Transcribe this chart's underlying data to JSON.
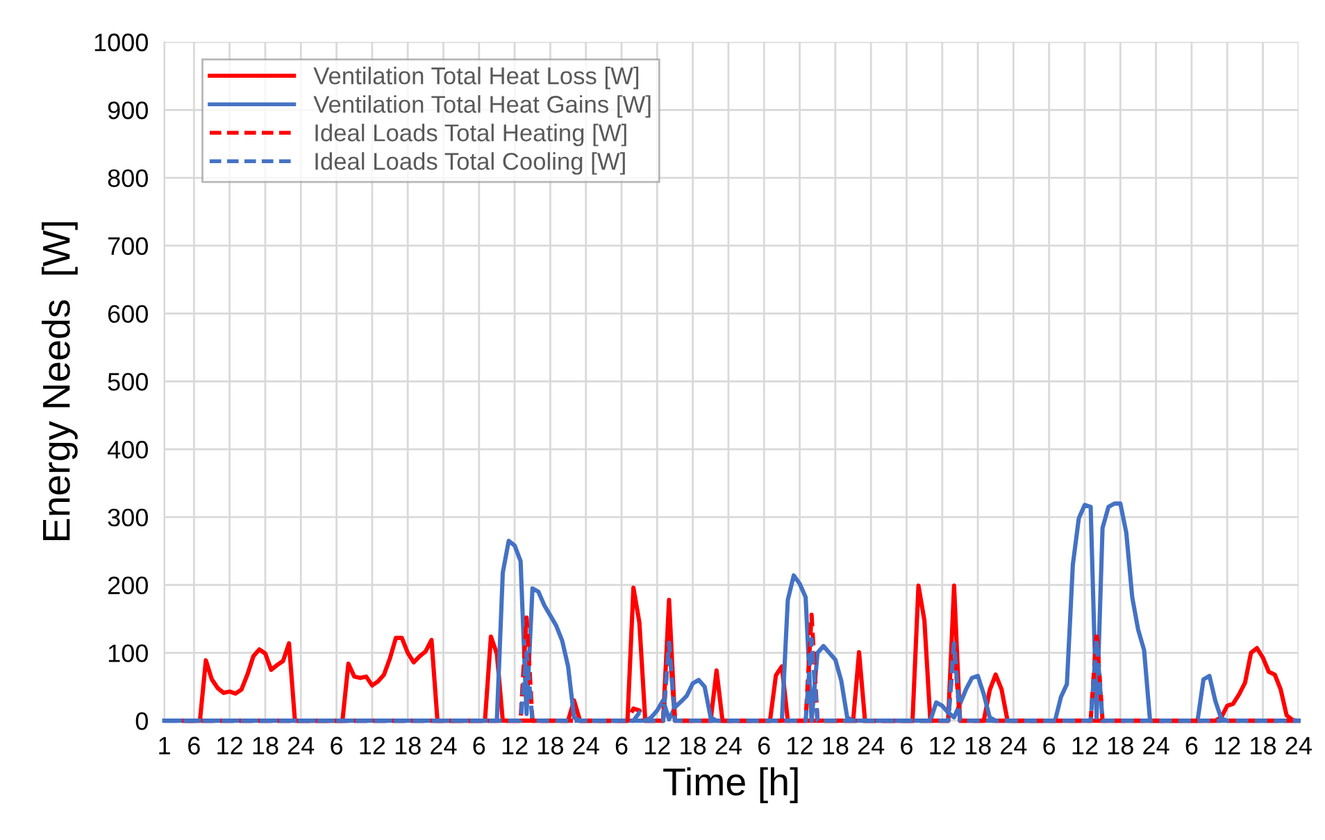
{
  "chart_data": {
    "type": "line",
    "xlabel": "Time [h]",
    "ylabel": "Energy Needs  [W]",
    "categories": [
      "1",
      null,
      null,
      null,
      null,
      "6",
      null,
      null,
      null,
      null,
      null,
      "12",
      null,
      null,
      null,
      null,
      null,
      "18",
      null,
      null,
      null,
      null,
      null,
      "24",
      null,
      null,
      null,
      null,
      null,
      "6",
      null,
      null,
      null,
      null,
      null,
      "12",
      null,
      null,
      null,
      null,
      null,
      "18",
      null,
      null,
      null,
      null,
      null,
      "24",
      null,
      null,
      null,
      null,
      null,
      "6",
      null,
      null,
      null,
      null,
      null,
      "12",
      null,
      null,
      null,
      null,
      null,
      "18",
      null,
      null,
      null,
      null,
      null,
      "24",
      null,
      null,
      null,
      null,
      null,
      "6",
      null,
      null,
      null,
      null,
      null,
      "12",
      null,
      null,
      null,
      null,
      null,
      "18",
      null,
      null,
      null,
      null,
      null,
      "24",
      null,
      null,
      null,
      null,
      null,
      "6",
      null,
      null,
      null,
      null,
      null,
      "12",
      null,
      null,
      null,
      null,
      null,
      "18",
      null,
      null,
      null,
      null,
      null,
      "24",
      null,
      null,
      null,
      null,
      null,
      "6",
      null,
      null,
      null,
      null,
      null,
      "12",
      null,
      null,
      null,
      null,
      null,
      "18",
      null,
      null,
      null,
      null,
      null,
      "24",
      null,
      null,
      null,
      null,
      null,
      "6",
      null,
      null,
      null,
      null,
      null,
      "12",
      null,
      null,
      null,
      null,
      null,
      "18",
      null,
      null,
      null,
      null,
      null,
      "24",
      null,
      null,
      null,
      null,
      null,
      "6",
      null,
      null,
      null,
      null,
      null,
      "12",
      null,
      null,
      null,
      null,
      null,
      "18",
      null,
      null,
      null,
      null,
      null,
      "24"
    ],
    "series": [
      {
        "name": "Ventilation Total Heat Loss [W]",
        "color": "#ff0000",
        "line_style": "solid",
        "values": [
          null,
          null,
          null,
          null,
          0,
          0,
          0,
          89,
          61,
          48,
          41,
          43,
          40,
          46,
          68,
          95,
          105,
          99,
          75,
          82,
          88,
          114,
          0,
          0,
          0,
          0,
          0,
          0,
          0,
          0,
          0,
          84,
          65,
          63,
          65,
          52,
          58,
          68,
          92,
          122,
          122,
          100,
          86,
          95,
          102,
          119,
          0,
          0,
          0,
          0,
          0,
          0,
          0,
          0,
          0,
          124,
          99,
          0,
          0,
          0,
          0,
          0,
          0,
          0,
          0,
          0,
          0,
          0,
          0,
          30,
          0,
          0,
          0,
          0,
          0,
          0,
          0,
          0,
          0,
          196,
          145,
          0,
          0,
          0,
          0,
          178,
          0,
          0,
          0,
          0,
          0,
          0,
          0,
          74,
          0,
          0,
          0,
          0,
          0,
          0,
          0,
          0,
          0,
          67,
          80,
          0,
          0,
          0,
          0,
          0,
          0,
          0,
          0,
          0,
          0,
          0,
          0,
          101,
          0,
          0,
          0,
          0,
          0,
          0,
          0,
          0,
          0,
          199,
          148,
          0,
          0,
          0,
          0,
          199,
          0,
          0,
          0,
          0,
          0,
          45,
          68,
          46,
          0,
          0,
          0,
          0,
          0,
          0,
          0,
          0,
          0,
          0,
          0,
          0,
          0,
          0,
          0,
          0,
          0,
          0,
          0,
          0,
          0,
          0,
          0,
          0,
          0,
          0,
          0,
          0,
          0,
          0,
          0,
          0,
          0,
          0,
          0,
          0,
          5,
          22,
          25,
          39,
          56,
          100,
          107,
          93,
          72,
          68,
          46,
          8,
          1,
          0
        ]
      },
      {
        "name": "Ventilation Total Heat Gains [W]",
        "color": "#4472c4",
        "line_style": "solid",
        "values": [
          0,
          0,
          0,
          0,
          0,
          0,
          0,
          0,
          0,
          0,
          0,
          0,
          0,
          0,
          0,
          0,
          0,
          0,
          0,
          0,
          0,
          0,
          0,
          0,
          0,
          0,
          0,
          0,
          0,
          0,
          0,
          0,
          0,
          0,
          0,
          0,
          0,
          0,
          0,
          0,
          0,
          0,
          0,
          0,
          0,
          0,
          0,
          0,
          0,
          0,
          0,
          0,
          0,
          0,
          0,
          0,
          0,
          218,
          265,
          258,
          235,
          10,
          195,
          190,
          170,
          155,
          140,
          118,
          80,
          5,
          0,
          0,
          0,
          0,
          0,
          0,
          0,
          0,
          0,
          0,
          0,
          0,
          5,
          15,
          30,
          2,
          20,
          28,
          37,
          55,
          60,
          50,
          5,
          0,
          0,
          0,
          0,
          0,
          0,
          0,
          0,
          0,
          0,
          0,
          0,
          178,
          214,
          202,
          182,
          0,
          100,
          110,
          100,
          90,
          59,
          5,
          0,
          0,
          0,
          0,
          0,
          0,
          0,
          0,
          0,
          0,
          0,
          0,
          0,
          0,
          27,
          22,
          12,
          5,
          25,
          46,
          63,
          66,
          39,
          5,
          0,
          0,
          0,
          0,
          0,
          0,
          0,
          0,
          0,
          0,
          0,
          35,
          54,
          230,
          298,
          318,
          315,
          5,
          284,
          315,
          320,
          320,
          277,
          182,
          134,
          104,
          0,
          0,
          0,
          0,
          0,
          0,
          0,
          0,
          0,
          61,
          66,
          29,
          3,
          0,
          0,
          0,
          0,
          0,
          0,
          0,
          0,
          0,
          0,
          0,
          0,
          0
        ]
      },
      {
        "name": "Ideal Loads Total Heating [W]",
        "color": "#ff0000",
        "line_style": "dashed",
        "values": [
          null,
          null,
          null,
          0,
          0,
          0,
          0,
          0,
          0,
          0,
          0,
          0,
          0,
          0,
          0,
          0,
          0,
          0,
          0,
          0,
          0,
          0,
          0,
          0,
          0,
          0,
          0,
          0,
          0,
          0,
          0,
          0,
          0,
          0,
          0,
          0,
          0,
          0,
          0,
          0,
          0,
          0,
          0,
          0,
          0,
          0,
          0,
          0,
          0,
          0,
          0,
          0,
          0,
          0,
          0,
          0,
          0,
          0,
          0,
          0,
          0,
          152,
          0,
          0,
          0,
          0,
          0,
          0,
          0,
          0,
          0,
          0,
          0,
          0,
          0,
          0,
          0,
          0,
          0,
          18,
          15,
          0,
          0,
          0,
          0,
          120,
          0,
          0,
          0,
          0,
          0,
          0,
          0,
          0,
          0,
          0,
          0,
          0,
          0,
          0,
          0,
          0,
          0,
          0,
          0,
          0,
          0,
          0,
          0,
          156,
          0,
          0,
          0,
          0,
          0,
          0,
          0,
          0,
          0,
          0,
          0,
          0,
          0,
          0,
          0,
          0,
          0,
          0,
          0,
          0,
          0,
          0,
          0,
          110,
          0,
          0,
          0,
          0,
          0,
          0,
          0,
          0,
          0,
          0,
          0,
          0,
          0,
          0,
          0,
          0,
          0,
          0,
          0,
          0,
          0,
          0,
          0,
          131,
          0,
          0,
          0,
          0,
          0,
          0,
          0,
          0,
          0,
          0,
          0,
          0,
          0,
          0,
          0,
          0,
          0,
          0,
          0,
          0,
          0,
          0,
          0,
          0,
          0,
          0,
          0,
          0,
          0,
          0,
          0,
          0,
          0,
          0
        ]
      },
      {
        "name": "Ideal Loads Total Cooling [W]",
        "color": "#4472c4",
        "line_style": "dashed",
        "values": [
          0,
          0,
          0,
          0,
          0,
          0,
          0,
          0,
          0,
          0,
          0,
          0,
          0,
          0,
          0,
          0,
          0,
          0,
          0,
          0,
          0,
          0,
          0,
          0,
          0,
          0,
          0,
          0,
          0,
          0,
          0,
          0,
          0,
          0,
          0,
          0,
          0,
          0,
          0,
          0,
          0,
          0,
          0,
          0,
          0,
          0,
          0,
          0,
          0,
          0,
          0,
          0,
          0,
          0,
          0,
          0,
          0,
          0,
          0,
          0,
          0,
          100,
          0,
          0,
          0,
          0,
          0,
          0,
          0,
          0,
          0,
          0,
          0,
          0,
          0,
          0,
          0,
          0,
          0,
          0,
          12,
          0,
          0,
          0,
          0,
          115,
          0,
          0,
          0,
          0,
          0,
          0,
          0,
          0,
          0,
          0,
          0,
          0,
          0,
          0,
          0,
          0,
          0,
          0,
          0,
          0,
          0,
          0,
          0,
          120,
          0,
          0,
          0,
          0,
          0,
          0,
          0,
          0,
          0,
          0,
          0,
          0,
          0,
          0,
          0,
          0,
          0,
          0,
          0,
          0,
          0,
          0,
          0,
          114,
          0,
          0,
          0,
          0,
          0,
          0,
          0,
          0,
          0,
          0,
          0,
          0,
          0,
          0,
          0,
          0,
          0,
          0,
          0,
          0,
          0,
          0,
          0,
          120,
          0,
          0,
          0,
          0,
          0,
          0,
          0,
          0,
          0,
          0,
          0,
          0,
          0,
          0,
          0,
          0,
          0,
          0,
          0,
          0,
          0,
          0,
          0,
          0,
          0,
          0,
          0,
          0,
          0,
          0,
          0,
          0,
          0,
          0
        ]
      }
    ],
    "ylim": [
      0,
      1000
    ],
    "yticks": [
      0,
      100,
      200,
      300,
      400,
      500,
      600,
      700,
      800,
      900,
      1000
    ],
    "grid": true,
    "legend": "top left"
  }
}
